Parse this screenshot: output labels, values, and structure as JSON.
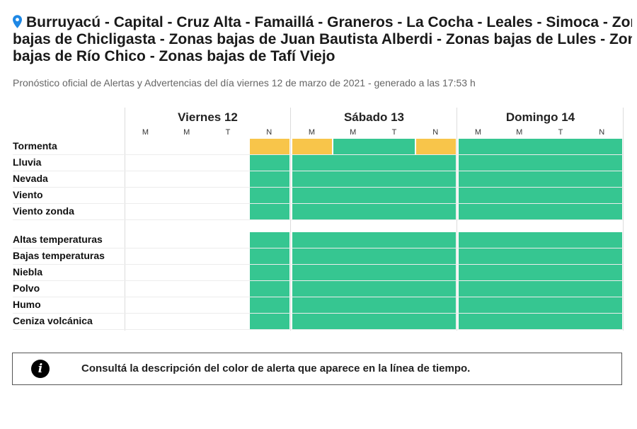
{
  "header": {
    "title_line1": "Burruyacú - Capital - Cruz Alta - Famaillá - Graneros - La Cocha - Leales - Simoca - Zonas",
    "title_line2": "bajas de Chicligasta - Zonas bajas de Juan Bautista Alberdi - Zonas bajas de Lules - Zonas",
    "title_line3": "bajas de Río Chico - Zonas bajas de Tafí Viejo",
    "subtitle": "Pronóstico oficial de Alertas y Advertencias del día viernes 12 de marzo de 2021 - generado a las 17:53 h",
    "pin_icon": "location-pin-icon",
    "pin_color": "#1e88e5"
  },
  "colors": {
    "green": "#36c691",
    "yellow": "#f8c54a",
    "none": "#ffffff"
  },
  "timeline": {
    "days": [
      {
        "label": "Viernes 12",
        "slots": [
          "M",
          "M",
          "T",
          "N"
        ]
      },
      {
        "label": "Sábado 13",
        "slots": [
          "M",
          "M",
          "T",
          "N"
        ]
      },
      {
        "label": "Domingo 14",
        "slots": [
          "M",
          "M",
          "T",
          "N"
        ]
      }
    ],
    "group1": [
      {
        "label": "Tormenta",
        "cells": [
          "none",
          "none",
          "none",
          "yellow",
          "yellow",
          "green",
          "green",
          "yellow",
          "green",
          "green",
          "green",
          "green"
        ]
      },
      {
        "label": "Lluvia",
        "cells": [
          "none",
          "none",
          "none",
          "green",
          "green",
          "green",
          "green",
          "green",
          "green",
          "green",
          "green",
          "green"
        ]
      },
      {
        "label": "Nevada",
        "cells": [
          "none",
          "none",
          "none",
          "green",
          "green",
          "green",
          "green",
          "green",
          "green",
          "green",
          "green",
          "green"
        ]
      },
      {
        "label": "Viento",
        "cells": [
          "none",
          "none",
          "none",
          "green",
          "green",
          "green",
          "green",
          "green",
          "green",
          "green",
          "green",
          "green"
        ]
      },
      {
        "label": "Viento zonda",
        "cells": [
          "none",
          "none",
          "none",
          "green",
          "green",
          "green",
          "green",
          "green",
          "green",
          "green",
          "green",
          "green"
        ]
      }
    ],
    "group2": [
      {
        "label": "Altas temperaturas",
        "cells": [
          "none",
          "none",
          "none",
          "green",
          "green",
          "green",
          "green",
          "green",
          "green",
          "green",
          "green",
          "green"
        ]
      },
      {
        "label": "Bajas temperaturas",
        "cells": [
          "none",
          "none",
          "none",
          "green",
          "green",
          "green",
          "green",
          "green",
          "green",
          "green",
          "green",
          "green"
        ]
      },
      {
        "label": "Niebla",
        "cells": [
          "none",
          "none",
          "none",
          "green",
          "green",
          "green",
          "green",
          "green",
          "green",
          "green",
          "green",
          "green"
        ]
      },
      {
        "label": "Polvo",
        "cells": [
          "none",
          "none",
          "none",
          "green",
          "green",
          "green",
          "green",
          "green",
          "green",
          "green",
          "green",
          "green"
        ]
      },
      {
        "label": "Humo",
        "cells": [
          "none",
          "none",
          "none",
          "green",
          "green",
          "green",
          "green",
          "green",
          "green",
          "green",
          "green",
          "green"
        ]
      },
      {
        "label": "Ceniza volcánica",
        "cells": [
          "none",
          "none",
          "none",
          "green",
          "green",
          "green",
          "green",
          "green",
          "green",
          "green",
          "green",
          "green"
        ]
      }
    ]
  },
  "info": {
    "icon": "info-icon",
    "icon_glyph": "i",
    "text": "Consultá la descripción del color de alerta que aparece en la línea de tiempo."
  }
}
